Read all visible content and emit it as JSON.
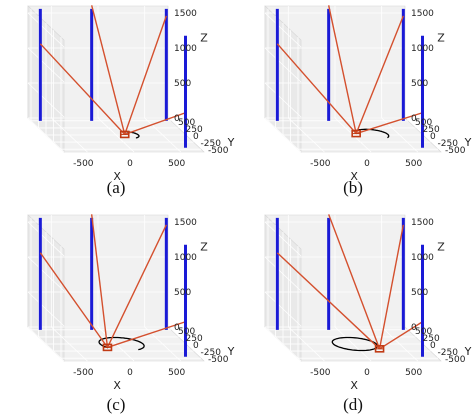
{
  "chart_data": [
    {
      "type": "3d-line",
      "caption": "(a)",
      "xlabel": "X",
      "ylabel": "Y",
      "zlabel": "Z",
      "x_ticks": [
        "-500",
        "0",
        "500"
      ],
      "y_ticks": [
        "500",
        "250",
        "0",
        "-250",
        "-500"
      ],
      "z_ticks": [
        "0",
        "500",
        "1000",
        "1500"
      ],
      "xlim": [
        -750,
        750
      ],
      "ylim": [
        -600,
        600
      ],
      "zlim": [
        0,
        1600
      ],
      "pillars": [
        [
          -650,
          500
        ],
        [
          -100,
          500
        ],
        [
          700,
          500
        ],
        [
          600,
          -450
        ]
      ],
      "pillar_top_z": 1600,
      "cables": [
        {
          "from": [
            -650,
            500,
            1100
          ],
          "to": [
            100,
            20,
            0
          ]
        },
        {
          "from": [
            -100,
            500,
            1650
          ],
          "to": [
            100,
            20,
            0
          ]
        },
        {
          "from": [
            700,
            500,
            1500
          ],
          "to": [
            100,
            20,
            0
          ]
        },
        {
          "from": [
            600,
            -450,
            500
          ],
          "to": [
            100,
            20,
            0
          ]
        }
      ],
      "payload": [
        100,
        20,
        0
      ],
      "trajectory": {
        "center": [
          120,
          0,
          0
        ],
        "radius": 120,
        "start_deg": 90,
        "end_deg": -60
      },
      "colors": {
        "pillar": "#1a1ad6",
        "cable": "#d4502e",
        "payload": "#c03a14",
        "trajectory": "#000000"
      }
    },
    {
      "type": "3d-line",
      "caption": "(b)",
      "xlabel": "X",
      "ylabel": "Y",
      "zlabel": "Z",
      "x_ticks": [
        "-500",
        "0",
        "500"
      ],
      "y_ticks": [
        "500",
        "250",
        "0",
        "-250",
        "-500"
      ],
      "z_ticks": [
        "0",
        "500",
        "1000",
        "1500"
      ],
      "xlim": [
        -750,
        750
      ],
      "ylim": [
        -600,
        600
      ],
      "zlim": [
        0,
        1600
      ],
      "pillars": [
        [
          -650,
          500
        ],
        [
          -100,
          500
        ],
        [
          700,
          500
        ],
        [
          600,
          -450
        ]
      ],
      "pillar_top_z": 1600,
      "cables": [
        {
          "from": [
            -650,
            500,
            1100
          ],
          "to": [
            50,
            50,
            0
          ]
        },
        {
          "from": [
            -100,
            500,
            1650
          ],
          "to": [
            50,
            50,
            0
          ]
        },
        {
          "from": [
            700,
            500,
            1500
          ],
          "to": [
            50,
            50,
            0
          ]
        },
        {
          "from": [
            600,
            -450,
            500
          ],
          "to": [
            50,
            50,
            0
          ]
        }
      ],
      "payload": [
        50,
        50,
        0
      ],
      "trajectory": {
        "center": [
          200,
          20,
          0
        ],
        "radius": 180,
        "start_deg": 150,
        "end_deg": -40
      },
      "colors": {
        "pillar": "#1a1ad6",
        "cable": "#d4502e",
        "payload": "#c03a14",
        "trajectory": "#000000"
      }
    },
    {
      "type": "3d-line",
      "caption": "(c)",
      "xlabel": "X",
      "ylabel": "Y",
      "zlabel": "Z",
      "x_ticks": [
        "-500",
        "0",
        "500"
      ],
      "y_ticks": [
        "500",
        "250",
        "0",
        "-250",
        "-500"
      ],
      "z_ticks": [
        "0",
        "500",
        "1000",
        "1500"
      ],
      "xlim": [
        -750,
        750
      ],
      "ylim": [
        -600,
        600
      ],
      "zlim": [
        0,
        1600
      ],
      "pillars": [
        [
          -650,
          500
        ],
        [
          -100,
          500
        ],
        [
          700,
          500
        ],
        [
          600,
          -450
        ]
      ],
      "pillar_top_z": 1600,
      "cables": [
        {
          "from": [
            -650,
            500,
            1100
          ],
          "to": [
            -130,
            -120,
            0
          ]
        },
        {
          "from": [
            -100,
            500,
            1650
          ],
          "to": [
            -130,
            -120,
            0
          ]
        },
        {
          "from": [
            700,
            500,
            1500
          ],
          "to": [
            -130,
            -120,
            0
          ]
        },
        {
          "from": [
            600,
            -450,
            500
          ],
          "to": [
            -130,
            -120,
            0
          ]
        }
      ],
      "payload": [
        -130,
        -120,
        0
      ],
      "trajectory": {
        "center": [
          60,
          0,
          0
        ],
        "radius": 230,
        "start_deg": 215,
        "end_deg": -60
      },
      "colors": {
        "pillar": "#1a1ad6",
        "cable": "#d4502e",
        "payload": "#c03a14",
        "trajectory": "#000000"
      }
    },
    {
      "type": "3d-line",
      "caption": "(d)",
      "xlabel": "X",
      "ylabel": "Y",
      "zlabel": "Z",
      "x_ticks": [
        "-500",
        "0",
        "500"
      ],
      "y_ticks": [
        "500",
        "250",
        "0",
        "-250",
        "-500"
      ],
      "z_ticks": [
        "0",
        "500",
        "1000",
        "1500"
      ],
      "xlim": [
        -750,
        750
      ],
      "ylim": [
        -600,
        600
      ],
      "zlim": [
        0,
        1600
      ],
      "pillars": [
        [
          -650,
          500
        ],
        [
          -100,
          500
        ],
        [
          700,
          500
        ],
        [
          600,
          -450
        ]
      ],
      "pillar_top_z": 1600,
      "cables": [
        {
          "from": [
            -650,
            500,
            1100
          ],
          "to": [
            230,
            -170,
            0
          ]
        },
        {
          "from": [
            -100,
            500,
            1650
          ],
          "to": [
            230,
            -170,
            0
          ]
        },
        {
          "from": [
            700,
            500,
            1500
          ],
          "to": [
            230,
            -170,
            0
          ]
        },
        {
          "from": [
            600,
            -450,
            500
          ],
          "to": [
            230,
            -170,
            0
          ]
        }
      ],
      "payload": [
        230,
        -170,
        0
      ],
      "trajectory": {
        "center": [
          20,
          0,
          0
        ],
        "radius": 230,
        "start_deg": -30,
        "end_deg": 330
      },
      "colors": {
        "pillar": "#1a1ad6",
        "cable": "#d4502e",
        "payload": "#c03a14",
        "trajectory": "#000000"
      }
    }
  ]
}
